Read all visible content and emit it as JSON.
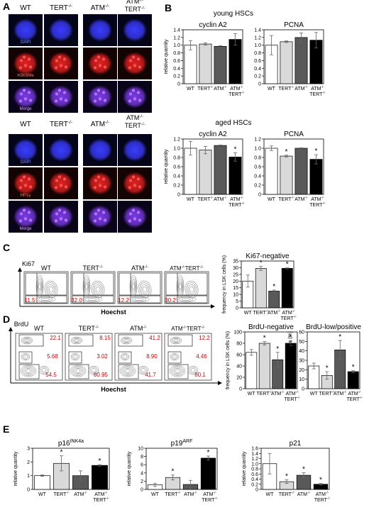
{
  "panels": [
    "A",
    "B",
    "C",
    "D",
    "E"
  ],
  "panelA": {
    "top": {
      "columns": [
        "WT",
        "TERT",
        "ATM",
        "ATM",
        "TERT"
      ],
      "columns_sup": [
        "",
        "-/-",
        "-/-",
        "-/-",
        "-/-"
      ],
      "rows": [
        "DAPI",
        "H3K9Me",
        "Merge"
      ],
      "signal_color": "#e22020"
    },
    "bottom": {
      "columns": [
        "WT",
        "TERT",
        "ATM",
        "ATM",
        "TERT"
      ],
      "columns_sup": [
        "",
        "-/-",
        "-/-",
        "-/-",
        "-/-"
      ],
      "rows": [
        "DAPI",
        "HP1γ",
        "Merge"
      ],
      "signal_color": "#e22020"
    }
  },
  "panelB_titles": {
    "young": "young HSCs",
    "aged": "aged HSCs"
  },
  "panelC_labels": {
    "stain": "Ki67",
    "xaxis": "Hoechst",
    "plots": [
      "WT",
      "TERT",
      "ATM",
      "ATM",
      "TERT"
    ],
    "plots_sup": [
      "",
      "-/-",
      "-/-",
      "-/-",
      "-/-"
    ],
    "pcts": [
      "11.5",
      "32.0",
      "12.2",
      "30.2"
    ]
  },
  "panelD_labels": {
    "stain": "BrdU",
    "xaxis": "Hoechst",
    "plots": [
      "WT",
      "TERT",
      "ATM",
      "ATM",
      "TERT"
    ],
    "plots_sup": [
      "",
      "-/-",
      "-/-",
      "-/-",
      "-/-"
    ],
    "pcts": [
      [
        "22.1",
        "5.68",
        "54.5"
      ],
      [
        "8.15",
        "3.02",
        "80.95"
      ],
      [
        "41.2",
        "8.90",
        "41.7"
      ],
      [
        "12.2",
        "4.46",
        "80.1"
      ]
    ]
  },
  "genotype_labels": {
    "wt": "WT",
    "tert": "TERT",
    "atm": "ATM",
    "sup": "-/-"
  },
  "bar_colors": {
    "WT": "#ffffff",
    "TERT": "#d9d9d9",
    "ATM": "#595959",
    "ATMTERT": "#000000"
  },
  "chart_data": [
    {
      "id": "B-young-cyclinA2",
      "type": "bar",
      "title": "cyclin A2",
      "ylabel": "relative quantity",
      "ylim": [
        0,
        1.4
      ],
      "yticks": [
        "0",
        "0.2",
        "0.4",
        "0.6",
        "0.8",
        "1.0",
        "1.2",
        "1.4"
      ],
      "categories": [
        "WT",
        "TERT-/-",
        "ATM-/-",
        "ATM-/-TERT-/-"
      ],
      "values": [
        1.0,
        1.03,
        0.97,
        1.15
      ],
      "errors": [
        0.12,
        0.03,
        0.02,
        0.15
      ],
      "stars": [
        false,
        false,
        false,
        false
      ]
    },
    {
      "id": "B-young-PCNA",
      "type": "bar",
      "title": "PCNA",
      "ylabel": "",
      "ylim": [
        0,
        1.4
      ],
      "yticks": [
        "0",
        "0.2",
        "0.4",
        "0.6",
        "0.8",
        "1.0",
        "1.2",
        "1.4"
      ],
      "categories": [
        "WT",
        "TERT-/-",
        "ATM-/-",
        "ATM-/-TERT-/-"
      ],
      "values": [
        1.0,
        1.09,
        1.2,
        1.13
      ],
      "errors": [
        0.25,
        0.02,
        0.12,
        0.2
      ],
      "stars": [
        false,
        false,
        false,
        false
      ]
    },
    {
      "id": "B-aged-cyclinA2",
      "type": "bar",
      "title": "cyclin A2",
      "ylabel": "relative quantity",
      "ylim": [
        0,
        1.2
      ],
      "yticks": [
        "0",
        "0.2",
        "0.4",
        "0.6",
        "0.8",
        "1.0",
        "1.2"
      ],
      "categories": [
        "WT",
        "TERT-/-",
        "ATM-/-",
        "ATM-/-TERT-/-"
      ],
      "values": [
        1.0,
        0.96,
        1.06,
        0.81
      ],
      "errors": [
        0.15,
        0.08,
        0.01,
        0.09
      ],
      "stars": [
        false,
        false,
        false,
        true
      ]
    },
    {
      "id": "B-aged-PCNA",
      "type": "bar",
      "title": "PCNA",
      "ylabel": "",
      "ylim": [
        0,
        1.2
      ],
      "yticks": [
        "0",
        "0.2",
        "0.4",
        "0.6",
        "0.8",
        "1.0",
        "1.2"
      ],
      "categories": [
        "WT",
        "TERT-/-",
        "ATM-/-",
        "ATM-/-TERT-/-"
      ],
      "values": [
        1.0,
        0.83,
        1.0,
        0.76
      ],
      "errors": [
        0.05,
        0.02,
        0.01,
        0.1
      ],
      "stars": [
        false,
        true,
        false,
        true
      ]
    },
    {
      "id": "C-Ki67-negative",
      "type": "bar",
      "title": "Ki67-negative",
      "ylabel": "frequency in LSK cells (%)",
      "ylim": [
        0,
        35
      ],
      "yticks": [
        "0",
        "5",
        "10",
        "15",
        "20",
        "25",
        "30",
        "35"
      ],
      "categories": [
        "WT",
        "TERT-/-",
        "ATM-/-",
        "ATM-/-TERT-/-"
      ],
      "values": [
        20,
        29.5,
        12.5,
        29.5
      ],
      "errors": [
        4.5,
        1.5,
        0.8,
        0.4
      ],
      "stars": [
        false,
        true,
        true,
        true
      ]
    },
    {
      "id": "D-BrdU-negative",
      "type": "bar",
      "title": "BrdU-negative",
      "ylabel": "frequency in LSK cells (%)",
      "ylim": [
        0,
        100
      ],
      "yticks": [
        "0",
        "20",
        "40",
        "60",
        "80",
        "100"
      ],
      "categories": [
        "WT",
        "TERT-/-",
        "ATM-/-",
        "ATM-/-TERT-/-"
      ],
      "values": [
        64,
        80,
        51,
        80
      ],
      "errors": [
        5,
        3,
        13,
        4
      ],
      "stars": [
        false,
        true,
        true,
        true
      ]
    },
    {
      "id": "D-BrdU-low-positive",
      "type": "bar",
      "title": "BrdU-low/positive",
      "ylabel": "frequency in LSK cells (%)",
      "ylim": [
        0,
        60
      ],
      "yticks": [
        "0",
        "10",
        "20",
        "30",
        "40",
        "50",
        "60"
      ],
      "categories": [
        "WT",
        "TERT-/-",
        "ATM-/-",
        "ATM-/-TERT-/-"
      ],
      "values": [
        24,
        14,
        41,
        18
      ],
      "errors": [
        3,
        4,
        10,
        1
      ],
      "stars": [
        false,
        true,
        true,
        true
      ]
    },
    {
      "id": "E-p16",
      "type": "bar",
      "title": "p16",
      "title_sup": "INK4a",
      "ylabel": "relative quantity",
      "ylim": [
        0,
        3
      ],
      "yticks": [
        "0",
        "1",
        "2",
        "3"
      ],
      "categories": [
        "WT",
        "TERT-/-",
        "ATM-/-",
        "ATM-/-TERT-/-"
      ],
      "values": [
        1.0,
        1.9,
        1.0,
        1.75
      ],
      "errors": [
        0.05,
        0.55,
        0.35,
        0.05
      ],
      "stars": [
        false,
        true,
        false,
        true
      ]
    },
    {
      "id": "E-p19",
      "type": "bar",
      "title": "p19",
      "title_sup": "ARF",
      "ylabel": "relative quantity",
      "ylim": [
        0,
        10
      ],
      "yticks": [
        "0",
        "2",
        "4",
        "6",
        "8",
        "10"
      ],
      "categories": [
        "WT",
        "TERT-/-",
        "ATM-/-",
        "ATM-/-TERT-/-"
      ],
      "values": [
        1.1,
        2.9,
        1.2,
        7.6
      ],
      "errors": [
        0.4,
        0.6,
        1.0,
        0.5
      ],
      "stars": [
        false,
        true,
        false,
        true
      ]
    },
    {
      "id": "E-p21",
      "type": "bar",
      "title": "p21",
      "ylabel": "relative quantity",
      "ylim": [
        0,
        1.6
      ],
      "yticks": [
        "0",
        "0.2",
        "0.4",
        "0.6",
        "0.8",
        "1.0",
        "1.2",
        "1.4",
        "1.6"
      ],
      "categories": [
        "WT",
        "TERT-/-",
        "ATM-/-",
        "ATM-/-TERT-/-"
      ],
      "values": [
        1.0,
        0.3,
        0.55,
        0.2
      ],
      "errors": [
        0.4,
        0.07,
        0.1,
        0.03
      ],
      "stars": [
        false,
        true,
        true,
        true
      ]
    }
  ]
}
